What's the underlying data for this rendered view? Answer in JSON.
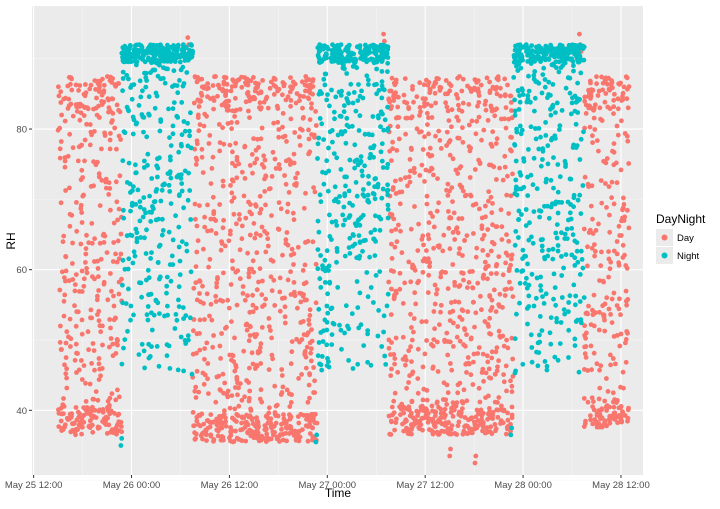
{
  "chart_data": {
    "type": "scatter",
    "title": "",
    "xlabel": "Time",
    "ylabel": "RH",
    "x_ticks": [
      "May 25 12:00",
      "May 26 00:00",
      "May 26 12:00",
      "May 27 00:00",
      "May 27 12:00",
      "May 28 00:00",
      "May 28 12:00"
    ],
    "y_ticks": [
      40,
      60,
      80
    ],
    "x_unit": "hours since May 25 00:00",
    "xlim": [
      11.8,
      86.7
    ],
    "ylim": [
      30.8,
      97.5
    ],
    "grid": true,
    "legend": {
      "title": "DayNight",
      "position": "right",
      "items": [
        {
          "label": "Day",
          "color": "#F8766D"
        },
        {
          "label": "Night",
          "color": "#00BFC4"
        }
      ]
    },
    "series": [
      {
        "name": "Day",
        "color": "#F8766D",
        "segments": [
          {
            "start": 15.0,
            "end": 22.8,
            "low": 36.5,
            "high": 87.5
          },
          {
            "start": 31.5,
            "end": 46.8,
            "low": 35.5,
            "high": 87.5
          },
          {
            "start": 55.5,
            "end": 70.8,
            "low": 36.5,
            "high": 87.5
          },
          {
            "start": 79.5,
            "end": 85.0,
            "low": 37.5,
            "high": 87.5
          }
        ],
        "outliers": [
          {
            "x": 30.9,
            "y": 93.0
          },
          {
            "x": 31.0,
            "y": 92.0
          },
          {
            "x": 31.1,
            "y": 91.0
          },
          {
            "x": 54.9,
            "y": 93.5
          },
          {
            "x": 55.0,
            "y": 92.5
          },
          {
            "x": 78.9,
            "y": 93.5
          },
          {
            "x": 79.0,
            "y": 92.0
          },
          {
            "x": 79.1,
            "y": 91.0
          },
          {
            "x": 63.0,
            "y": 33.5
          },
          {
            "x": 63.1,
            "y": 34.5
          },
          {
            "x": 66.1,
            "y": 32.5
          },
          {
            "x": 66.2,
            "y": 33.5
          }
        ]
      },
      {
        "name": "Night",
        "color": "#00BFC4",
        "segments": [
          {
            "start": 22.8,
            "end": 31.5,
            "low": 45.0,
            "high": 92.0
          },
          {
            "start": 46.8,
            "end": 55.5,
            "low": 45.0,
            "high": 92.0
          },
          {
            "start": 70.8,
            "end": 79.5,
            "low": 45.0,
            "high": 92.0
          }
        ],
        "outliers": [
          {
            "x": 22.7,
            "y": 35.0
          },
          {
            "x": 22.8,
            "y": 36.0
          },
          {
            "x": 46.6,
            "y": 35.5
          },
          {
            "x": 46.7,
            "y": 36.5
          },
          {
            "x": 70.5,
            "y": 36.5
          },
          {
            "x": 70.6,
            "y": 37.5
          }
        ]
      }
    ]
  }
}
